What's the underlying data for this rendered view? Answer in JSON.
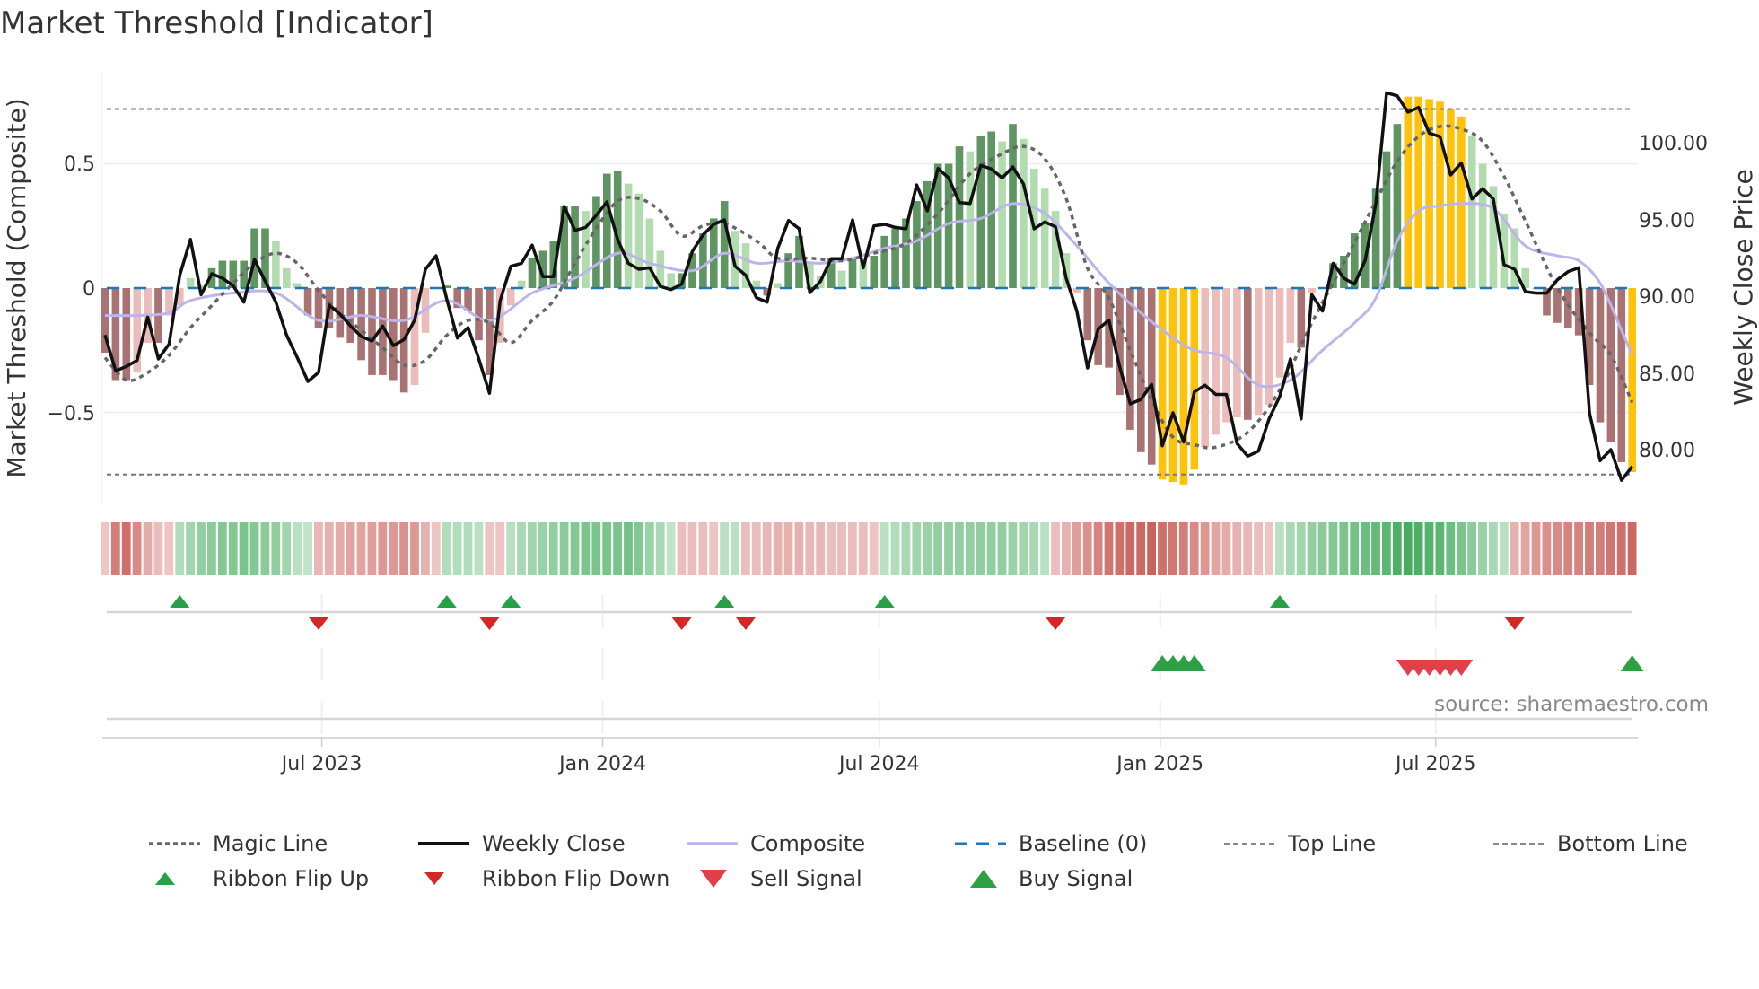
{
  "title": "Market Threshold [Indicator]",
  "source_note": "source: sharemaestro.com",
  "colors": {
    "bar_up_strong": "#5f9563",
    "bar_up_weak": "#b2dcb0",
    "bar_down_strong": "#a87372",
    "bar_down_weak": "#ebbcba",
    "bar_alert": "#ffc20a",
    "weekly_close": "#111111",
    "composite": "#bdb4ea",
    "magic_line": "#666666",
    "baseline": "#1f77b4",
    "threshold_lines": "#777777",
    "ribbon_up": "#3fa858",
    "ribbon_down": "#c4574f",
    "flip_up": "#27a048",
    "flip_down": "#d62728",
    "buy": "#2ca044",
    "sell": "#e0404a"
  },
  "chart_data": {
    "type": "bar+line",
    "title": "Market Threshold [Indicator]",
    "xlabel": "",
    "ylabel_left": "Market Threshold (Composite)",
    "ylabel_right": "Weekly Close Price",
    "x_unit": "week index",
    "ylim_left": [
      -0.88,
      0.85
    ],
    "ylim_right": [
      77,
      105
    ],
    "left_ticks": [
      {
        "value": 0.5,
        "label": "0.5"
      },
      {
        "value": 0,
        "label": "0"
      },
      {
        "value": -0.5,
        "label": "−0.5"
      }
    ],
    "right_ticks": [
      {
        "value": 100,
        "label": "100.00"
      },
      {
        "value": 95,
        "label": "95.00"
      },
      {
        "value": 90,
        "label": "90.00"
      },
      {
        "value": 85,
        "label": "85.00"
      },
      {
        "value": 80,
        "label": "80.00"
      }
    ],
    "x_ticks": [
      {
        "pos": 20.3,
        "label": "Jul 2023"
      },
      {
        "pos": 46.6,
        "label": "Jan 2024"
      },
      {
        "pos": 72.5,
        "label": "Jul 2024"
      },
      {
        "pos": 98.8,
        "label": "Jan 2025"
      },
      {
        "pos": 124.6,
        "label": "Jul 2025"
      }
    ],
    "top_line": 0.72,
    "bottom_line": -0.75,
    "baseline": 0,
    "composite_bars": [
      -0.26,
      -0.37,
      -0.37,
      -0.34,
      -0.22,
      -0.22,
      -0.11,
      -0.07,
      0.04,
      0.01,
      0.08,
      0.11,
      0.11,
      0.11,
      0.24,
      0.24,
      0.19,
      0.08,
      0.02,
      -0.11,
      -0.16,
      -0.16,
      -0.2,
      -0.22,
      -0.29,
      -0.35,
      -0.35,
      -0.37,
      -0.42,
      -0.39,
      -0.18,
      0.0,
      0.01,
      -0.08,
      -0.09,
      -0.21,
      -0.35,
      -0.22,
      -0.07,
      0.03,
      0.12,
      0.15,
      0.19,
      0.33,
      0.33,
      0.31,
      0.37,
      0.46,
      0.47,
      0.42,
      0.38,
      0.28,
      0.15,
      0.06,
      0.06,
      0.14,
      0.22,
      0.28,
      0.35,
      0.23,
      0.18,
      0.03,
      -0.03,
      0.02,
      0.14,
      0.21,
      0.1,
      0.05,
      0.12,
      0.07,
      0.12,
      0.11,
      0.13,
      0.21,
      0.24,
      0.28,
      0.35,
      0.43,
      0.5,
      0.5,
      0.57,
      0.55,
      0.61,
      0.63,
      0.59,
      0.66,
      0.6,
      0.48,
      0.4,
      0.31,
      0.14,
      -0.02,
      -0.21,
      -0.31,
      -0.32,
      -0.43,
      -0.57,
      -0.66,
      -0.71,
      -0.77,
      -0.78,
      -0.79,
      -0.73,
      -0.64,
      -0.59,
      -0.54,
      -0.52,
      -0.53,
      -0.51,
      -0.47,
      -0.36,
      -0.22,
      -0.24,
      -0.02,
      0.0,
      0.1,
      0.13,
      0.22,
      0.26,
      0.4,
      0.55,
      0.66,
      0.77,
      0.77,
      0.76,
      0.75,
      0.72,
      0.69,
      0.61,
      0.5,
      0.41,
      0.3,
      0.24,
      0.08,
      0.0,
      -0.11,
      -0.14,
      -0.16,
      -0.19,
      -0.39,
      -0.54,
      -0.62,
      -0.7,
      -0.74
    ],
    "alert_bars": [
      99,
      100,
      101,
      102,
      122,
      123,
      124,
      125,
      126,
      127,
      143
    ],
    "weekly_close": [
      87.47,
      85.13,
      85.42,
      85.81,
      88.63,
      85.91,
      86.88,
      91.36,
      93.7,
      90.1,
      91.46,
      91.17,
      90.68,
      89.61,
      92.38,
      90.97,
      89.61,
      87.47,
      86.01,
      84.44,
      85.03,
      89.42,
      88.83,
      88.05,
      87.37,
      87.08,
      88.05,
      86.78,
      87.17,
      88.44,
      91.75,
      92.63,
      89.81,
      87.27,
      87.95,
      85.91,
      83.67,
      89.71,
      91.95,
      92.14,
      93.32,
      91.27,
      91.27,
      95.85,
      94.29,
      94.48,
      95.26,
      96.14,
      93.7,
      92.14,
      91.75,
      91.85,
      90.63,
      90.43,
      90.78,
      92.92,
      94.0,
      94.68,
      94.97,
      91.95,
      91.36,
      89.9,
      89.61,
      93.12,
      94.93,
      94.39,
      90.23,
      90.97,
      92.44,
      92.44,
      94.97,
      91.85,
      94.58,
      94.68,
      94.48,
      94.39,
      97.25,
      95.56,
      98.32,
      97.7,
      96.1,
      96.04,
      98.52,
      98.29,
      97.7,
      98.42,
      97.31,
      94.39,
      94.83,
      94.52,
      91.17,
      89.03,
      85.32,
      87.86,
      88.44,
      85.42,
      82.98,
      83.27,
      84.25,
      80.25,
      82.4,
      80.5,
      83.76,
      84.2,
      83.6,
      83.6,
      80.4,
      79.57,
      79.9,
      82.0,
      83.47,
      85.91,
      82.0,
      90.1,
      89.03,
      92.14,
      91.17,
      90.78,
      92.34,
      96.04,
      103.25,
      103.05,
      101.99,
      102.3,
      100.62,
      100.4,
      97.9,
      98.68,
      96.33,
      97.0,
      96.33,
      92.05,
      91.75,
      90.29,
      90.2,
      90.2,
      91.07,
      91.6,
      91.85,
      82.4,
      79.28,
      80.0,
      78.0,
      78.9
    ],
    "composite_line": [
      [
        0,
        -0.11
      ],
      [
        3,
        -0.11
      ],
      [
        6,
        -0.1
      ],
      [
        8,
        -0.05
      ],
      [
        12,
        -0.02
      ],
      [
        16,
        -0.02
      ],
      [
        20,
        -0.13
      ],
      [
        24,
        -0.11
      ],
      [
        28,
        -0.13
      ],
      [
        32,
        -0.05
      ],
      [
        36,
        -0.13
      ],
      [
        40,
        -0.02
      ],
      [
        44,
        0.04
      ],
      [
        48,
        0.14
      ],
      [
        51,
        0.1
      ],
      [
        55,
        0.07
      ],
      [
        58,
        0.14
      ],
      [
        61,
        0.1
      ],
      [
        64,
        0.11
      ],
      [
        67,
        0.1
      ],
      [
        70,
        0.12
      ],
      [
        73,
        0.16
      ],
      [
        76,
        0.19
      ],
      [
        79,
        0.26
      ],
      [
        82,
        0.28
      ],
      [
        85,
        0.34
      ],
      [
        88,
        0.3
      ],
      [
        91,
        0.17
      ],
      [
        94,
        0.02
      ],
      [
        97,
        -0.1
      ],
      [
        100,
        -0.2
      ],
      [
        102,
        -0.25
      ],
      [
        105,
        -0.28
      ],
      [
        108,
        -0.39
      ],
      [
        111,
        -0.37
      ],
      [
        114,
        -0.25
      ],
      [
        117,
        -0.14
      ],
      [
        119,
        -0.04
      ],
      [
        121,
        0.19
      ],
      [
        123,
        0.31
      ],
      [
        125,
        0.33
      ],
      [
        127,
        0.34
      ],
      [
        130,
        0.32
      ],
      [
        133,
        0.17
      ],
      [
        136,
        0.13
      ],
      [
        138,
        0.11
      ],
      [
        140,
        0.02
      ],
      [
        142,
        -0.17
      ],
      [
        143,
        -0.27
      ]
    ],
    "magic_line": [
      [
        0,
        -0.28
      ],
      [
        2,
        -0.37
      ],
      [
        4,
        -0.34
      ],
      [
        6,
        -0.27
      ],
      [
        8,
        -0.16
      ],
      [
        10,
        -0.07
      ],
      [
        12,
        0.02
      ],
      [
        14,
        0.1
      ],
      [
        16,
        0.14
      ],
      [
        18,
        0.1
      ],
      [
        20,
        -0.01
      ],
      [
        22,
        -0.1
      ],
      [
        24,
        -0.17
      ],
      [
        26,
        -0.24
      ],
      [
        28,
        -0.31
      ],
      [
        30,
        -0.29
      ],
      [
        32,
        -0.19
      ],
      [
        34,
        -0.13
      ],
      [
        36,
        -0.14
      ],
      [
        38,
        -0.22
      ],
      [
        40,
        -0.13
      ],
      [
        42,
        -0.05
      ],
      [
        44,
        0.1
      ],
      [
        46,
        0.24
      ],
      [
        48,
        0.35
      ],
      [
        50,
        0.36
      ],
      [
        52,
        0.31
      ],
      [
        54,
        0.21
      ],
      [
        56,
        0.25
      ],
      [
        58,
        0.26
      ],
      [
        61,
        0.19
      ],
      [
        63,
        0.12
      ],
      [
        66,
        0.12
      ],
      [
        69,
        0.11
      ],
      [
        72,
        0.14
      ],
      [
        75,
        0.18
      ],
      [
        78,
        0.3
      ],
      [
        81,
        0.46
      ],
      [
        84,
        0.54
      ],
      [
        86,
        0.57
      ],
      [
        88,
        0.52
      ],
      [
        90,
        0.36
      ],
      [
        92,
        0.08
      ],
      [
        94,
        -0.04
      ],
      [
        96,
        -0.25
      ],
      [
        98,
        -0.45
      ],
      [
        100,
        -0.6
      ],
      [
        102,
        -0.63
      ],
      [
        104,
        -0.64
      ],
      [
        107,
        -0.58
      ],
      [
        110,
        -0.41
      ],
      [
        113,
        -0.14
      ],
      [
        116,
        0.1
      ],
      [
        119,
        0.35
      ],
      [
        121,
        0.51
      ],
      [
        123,
        0.61
      ],
      [
        125,
        0.65
      ],
      [
        127,
        0.64
      ],
      [
        129,
        0.59
      ],
      [
        131,
        0.45
      ],
      [
        133,
        0.27
      ],
      [
        136,
        0.0
      ],
      [
        139,
        -0.18
      ],
      [
        141,
        -0.27
      ],
      [
        143,
        -0.46
      ]
    ],
    "ribbon": [
      -0.15,
      -0.7,
      -0.8,
      -0.6,
      -0.35,
      -0.2,
      -0.15,
      0.25,
      0.35,
      0.45,
      0.5,
      0.55,
      0.55,
      0.6,
      0.55,
      0.5,
      0.45,
      0.35,
      0.2,
      0.15,
      -0.25,
      -0.3,
      -0.35,
      -0.4,
      -0.4,
      -0.45,
      -0.5,
      -0.5,
      -0.55,
      -0.5,
      -0.3,
      -0.15,
      0.25,
      0.25,
      0.25,
      0.2,
      -0.15,
      -0.15,
      0.2,
      0.3,
      0.35,
      0.4,
      0.45,
      0.5,
      0.55,
      0.6,
      0.6,
      0.6,
      0.6,
      0.65,
      0.55,
      0.4,
      0.3,
      0.15,
      -0.2,
      -0.2,
      -0.2,
      -0.15,
      0.2,
      0.2,
      -0.2,
      -0.2,
      -0.25,
      -0.3,
      -0.3,
      -0.3,
      -0.25,
      -0.25,
      -0.2,
      -0.2,
      -0.2,
      -0.2,
      -0.15,
      0.2,
      0.25,
      0.3,
      0.35,
      0.4,
      0.45,
      0.45,
      0.45,
      0.45,
      0.45,
      0.45,
      0.45,
      0.4,
      0.35,
      0.3,
      0.2,
      -0.2,
      -0.3,
      -0.45,
      -0.55,
      -0.65,
      -0.75,
      -0.8,
      -0.85,
      -0.85,
      -0.9,
      -0.8,
      -0.75,
      -0.7,
      -0.6,
      -0.5,
      -0.4,
      -0.35,
      -0.3,
      -0.25,
      -0.2,
      -0.15,
      0.2,
      0.3,
      0.35,
      0.45,
      0.5,
      0.55,
      0.6,
      0.65,
      0.7,
      0.75,
      0.8,
      0.9,
      0.95,
      0.9,
      0.85,
      0.8,
      0.7,
      0.6,
      0.5,
      0.4,
      0.3,
      0.2,
      -0.3,
      -0.4,
      -0.5,
      -0.55,
      -0.6,
      -0.65,
      -0.65,
      -0.7,
      -0.7,
      -0.75,
      -0.8,
      -0.85
    ],
    "ribbon_flip_up": [
      7,
      32,
      38,
      58,
      73,
      110
    ],
    "ribbon_flip_down": [
      20,
      36,
      54,
      60,
      89,
      132
    ],
    "buy_signal": [
      99,
      100,
      101,
      102,
      143
    ],
    "sell_signal": [
      122,
      123,
      124,
      125,
      126,
      127
    ],
    "legend": {
      "placement": "bottom",
      "items": [
        {
          "label": "Magic Line",
          "kind": "dotted-line"
        },
        {
          "label": "Weekly Close",
          "kind": "line"
        },
        {
          "label": "Composite",
          "kind": "line"
        },
        {
          "label": "Baseline (0)",
          "kind": "dashed-line"
        },
        {
          "label": "Top Line",
          "kind": "fine-dashed-line"
        },
        {
          "label": "Bottom Line",
          "kind": "fine-dashed-line"
        },
        {
          "label": "Ribbon Flip Up",
          "kind": "triangle-up"
        },
        {
          "label": "Ribbon Flip Down",
          "kind": "triangle-down"
        },
        {
          "label": "Sell Signal",
          "kind": "triangle-down"
        },
        {
          "label": "Buy Signal",
          "kind": "triangle-up"
        }
      ]
    }
  }
}
